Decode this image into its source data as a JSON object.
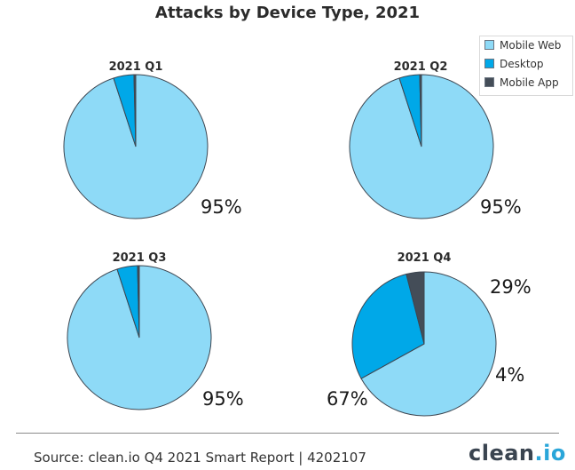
{
  "chart_data": {
    "type": "pie",
    "title": "Attacks by Device Type, 2021",
    "legend": {
      "placement": "top-right",
      "entries": [
        {
          "name": "Mobile Web",
          "color": "#8edaf7"
        },
        {
          "name": "Desktop",
          "color": "#00a8e8"
        },
        {
          "name": "Mobile App",
          "color": "#444d58"
        }
      ]
    },
    "pies": [
      {
        "title": "2021 Q1",
        "slices": [
          {
            "name": "Mobile Web",
            "value": 95,
            "label": "95%"
          },
          {
            "name": "Desktop",
            "value": 4.6,
            "label": ""
          },
          {
            "name": "Mobile App",
            "value": 0.4,
            "label": ""
          }
        ]
      },
      {
        "title": "2021 Q2",
        "slices": [
          {
            "name": "Mobile Web",
            "value": 95,
            "label": "95%"
          },
          {
            "name": "Desktop",
            "value": 4.6,
            "label": ""
          },
          {
            "name": "Mobile App",
            "value": 0.4,
            "label": ""
          }
        ]
      },
      {
        "title": "2021 Q3",
        "slices": [
          {
            "name": "Mobile Web",
            "value": 95,
            "label": "95%"
          },
          {
            "name": "Desktop",
            "value": 4.6,
            "label": ""
          },
          {
            "name": "Mobile App",
            "value": 0.4,
            "label": ""
          }
        ]
      },
      {
        "title": "2021 Q4",
        "slices": [
          {
            "name": "Mobile Web",
            "value": 67,
            "label": "67%"
          },
          {
            "name": "Desktop",
            "value": 29,
            "label": "29%"
          },
          {
            "name": "Mobile App",
            "value": 4,
            "label": "4%"
          }
        ]
      }
    ]
  },
  "footer": {
    "source": "Source: clean.io Q4 2021 Smart Report | 4202107",
    "brand_main": "clean",
    "brand_accent": ".io"
  }
}
